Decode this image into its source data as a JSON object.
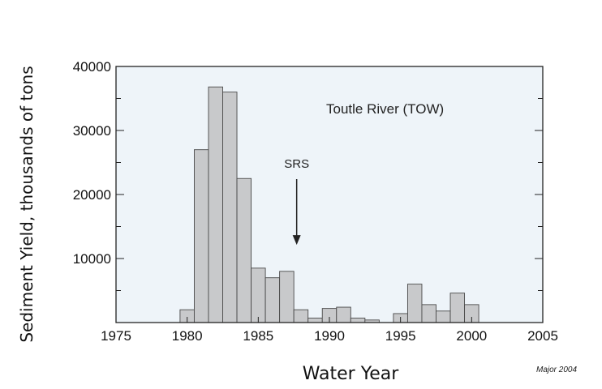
{
  "chart_data": {
    "type": "bar",
    "title": "Toutle River (TOW)",
    "xlabel": "Water Year",
    "ylabel": "Sediment Yield, thousands of tons",
    "xlim": [
      1975,
      2005
    ],
    "ylim": [
      0,
      40000
    ],
    "x_ticks": [
      1975,
      1980,
      1985,
      1990,
      1995,
      2000,
      2005
    ],
    "y_ticks": [
      10000,
      20000,
      30000,
      40000
    ],
    "grid": false,
    "bar_color": "#c8c9cb",
    "plot_background": "#eef4f9",
    "x": [
      1980,
      1981,
      1982,
      1983,
      1984,
      1985,
      1986,
      1987,
      1988,
      1989,
      1990,
      1991,
      1992,
      1993,
      1994,
      1995,
      1996,
      1997,
      1998,
      1999,
      2000
    ],
    "values": [
      2000,
      27000,
      36800,
      36000,
      22500,
      8500,
      7000,
      8000,
      2000,
      700,
      2200,
      2400,
      700,
      400,
      0,
      1400,
      6000,
      2800,
      1800,
      4600,
      2800
    ],
    "annotations": [
      {
        "text": "SRS",
        "x": 1987.7,
        "y": 11500,
        "type": "arrow-down"
      }
    ]
  },
  "source_note": "Major 2004"
}
